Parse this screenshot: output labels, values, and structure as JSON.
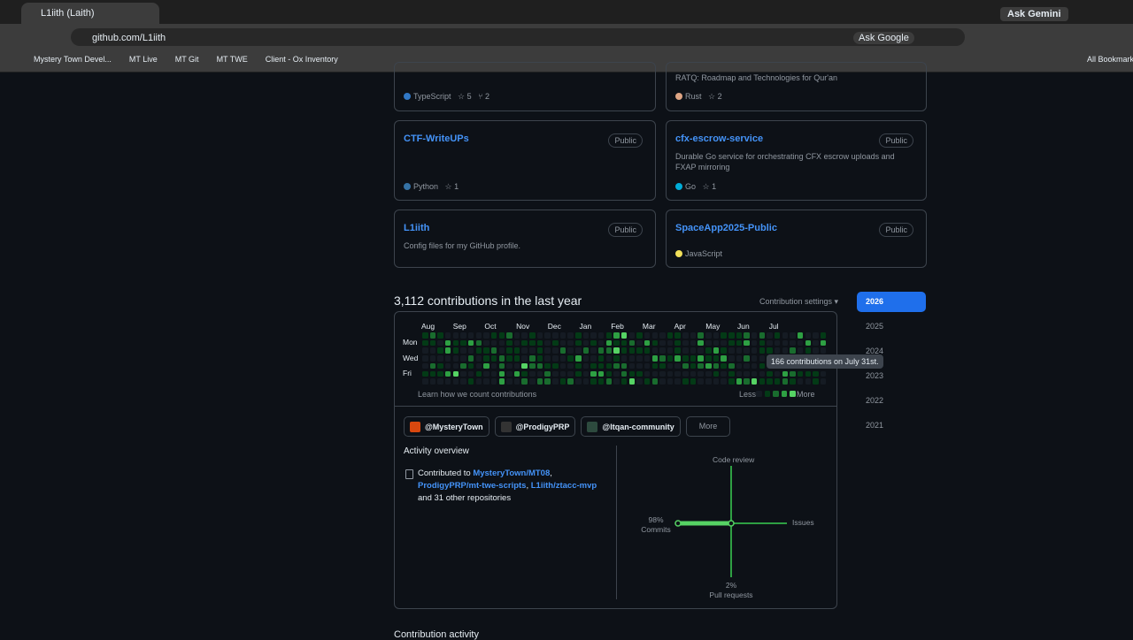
{
  "browser": {
    "tab_title": "L1iith (Laith)",
    "url": "github.com/L1iith",
    "ask_gemini": "Ask Gemini",
    "ask_google": "Ask Google",
    "bookmarks": [
      "Mystery Town Devel...",
      "MT Live",
      "MT Git",
      "MT TWE",
      "Client - Ox Inventory"
    ],
    "all_bookmarks": "All Bookmarks"
  },
  "repos": [
    {
      "language": "TypeScript",
      "stars": 5,
      "forks": 2
    },
    {
      "description": "RATQ: Roadmap and Technologies for Qur'an",
      "language": "Rust",
      "stars": 2
    },
    {
      "name": "CTF-WriteUPs",
      "visibility": "Public",
      "language": "Python",
      "stars": 1
    },
    {
      "name": "cfx-escrow-service",
      "visibility": "Public",
      "description": "Durable Go service for orchestrating CFX escrow uploads and FXAP mirroring",
      "language": "Go",
      "stars": 1
    },
    {
      "name": "L1iith",
      "visibility": "Public",
      "description": "Config files for my GitHub profile."
    },
    {
      "name": "SpaceApp2025-Public",
      "visibility": "Public",
      "language": "JavaScript"
    }
  ],
  "contributions": {
    "title": "3,112 contributions in the last year",
    "settings": "Contribution settings",
    "months": [
      "Aug",
      "Sep",
      "Oct",
      "Nov",
      "Dec",
      "Jan",
      "Feb",
      "Mar",
      "Apr",
      "May",
      "Jun",
      "Jul"
    ],
    "days": [
      "Mon",
      "Wed",
      "Fri"
    ],
    "learn": "Learn how we count contributions",
    "less": "Less",
    "more": "More",
    "tooltip": "166 contributions on July 31st.",
    "years": [
      "2026",
      "2025",
      "2024",
      "2023",
      "2022",
      "2021"
    ]
  },
  "organizations": {
    "names": [
      "@MysteryTown",
      "@ProdigyPRP",
      "@Itqan-community"
    ],
    "more": "More"
  },
  "activity": {
    "title": "Activity overview",
    "contributed_to": "Contributed to",
    "repos": [
      "MysteryTown/MT08",
      "ProdigyPRP/mt-twe-scripts",
      "L1iith/ztacc-mvp"
    ],
    "separator": ",",
    "other": "and 31 other repositories",
    "code_review": "Code review",
    "issues": "Issues",
    "commits_pct": "98%",
    "commits": "Commits",
    "pr_pct": "2%",
    "pull_requests": "Pull requests"
  },
  "footer": {
    "heading": "Contribution activity"
  }
}
